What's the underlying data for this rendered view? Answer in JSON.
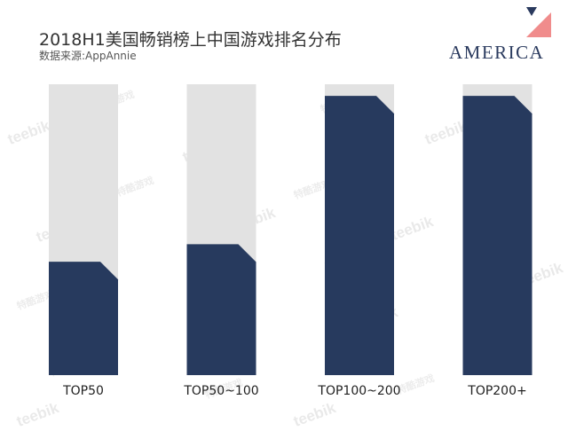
{
  "header": {
    "title": "2018H1美国畅销榜上中国游戏排名分布",
    "subtitle": "数据来源:AppAnnie"
  },
  "logo": {
    "text": "AMERICA",
    "accent_color": "#f08c8c",
    "mark_color": "#2a3a5e"
  },
  "watermark": {
    "text": "teebik",
    "text_cn": "特酷游戏"
  },
  "colors": {
    "fill": "#273a5e",
    "background_bar": "#e2e2e2",
    "label": "#222222"
  },
  "chart_data": {
    "type": "bar",
    "categories": [
      "TOP50",
      "TOP50~100",
      "TOP100~200",
      "TOP200+"
    ],
    "values": [
      0.39,
      0.45,
      0.96,
      0.96
    ],
    "ylim": [
      0,
      1
    ],
    "title": "2018H1美国畅销榜上中国游戏排名分布",
    "xlabel": "",
    "ylabel": "",
    "grid": false,
    "legend": "none"
  }
}
